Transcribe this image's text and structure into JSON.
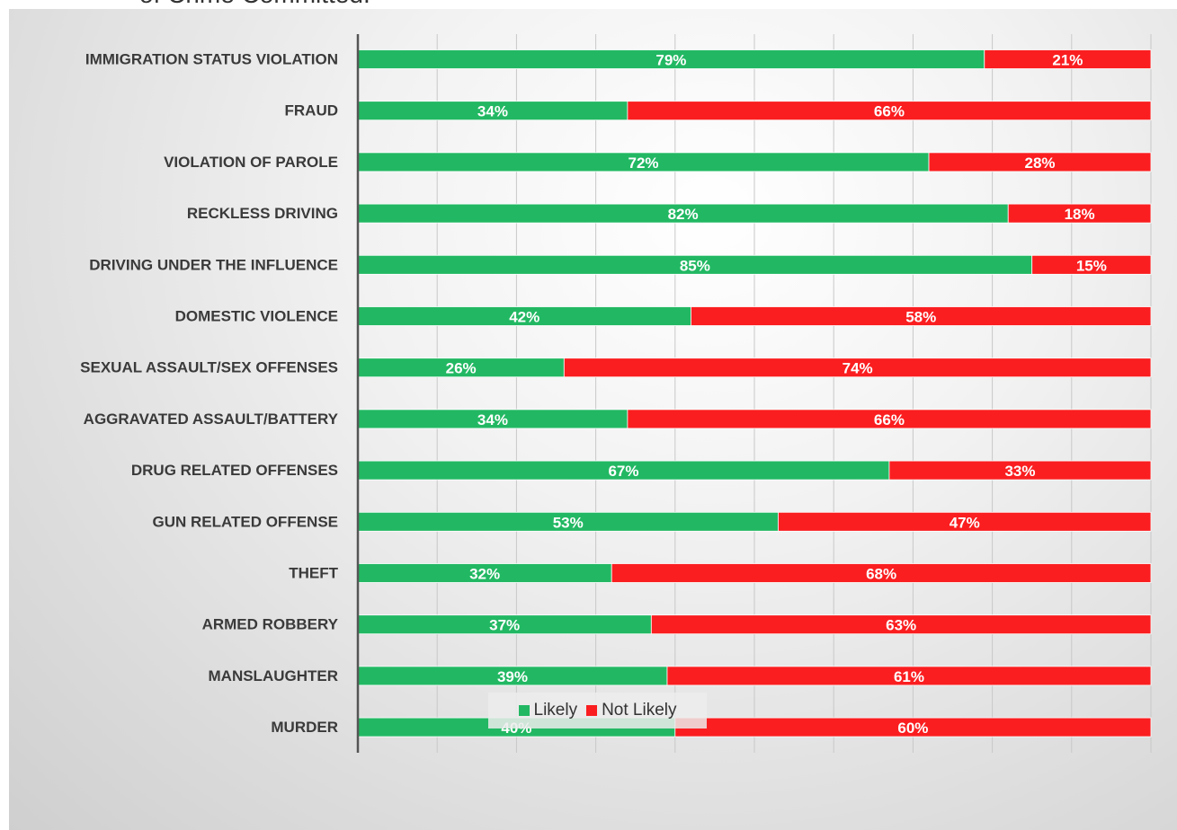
{
  "title_fragment": "of Crime Committed.",
  "chart_data": {
    "type": "bar",
    "orientation": "horizontal",
    "stacked": "percent",
    "categories": [
      "IMMIGRATION STATUS VIOLATION",
      "FRAUD",
      "VIOLATION OF PAROLE",
      "RECKLESS DRIVING",
      "DRIVING UNDER THE INFLUENCE",
      "DOMESTIC VIOLENCE",
      "SEXUAL ASSAULT/SEX OFFENSES",
      "AGGRAVATED ASSAULT/BATTERY",
      "DRUG RELATED OFFENSES",
      "GUN RELATED OFFENSE",
      "THEFT",
      "ARMED ROBBERY",
      "MANSLAUGHTER",
      "MURDER"
    ],
    "series": [
      {
        "name": "Likely",
        "color": "#22b863",
        "values": [
          79,
          34,
          72,
          82,
          85,
          42,
          26,
          34,
          67,
          53,
          32,
          37,
          39,
          40
        ],
        "labels": [
          "79%",
          "34%",
          "72%",
          "82%",
          "85%",
          "42%",
          "26%",
          "34%",
          "67%",
          "53%",
          "32%",
          "37%",
          "39%",
          "40%"
        ]
      },
      {
        "name": "Not Likely",
        "color": "#fa1e20",
        "values": [
          21,
          66,
          28,
          18,
          15,
          58,
          74,
          66,
          33,
          47,
          68,
          63,
          61,
          60
        ],
        "labels": [
          "21%",
          "66%",
          "28%",
          "18%",
          "15%",
          "58%",
          "74%",
          "66%",
          "33%",
          "47%",
          "68%",
          "63%",
          "61%",
          "60%"
        ]
      }
    ],
    "xlim": [
      0,
      100
    ],
    "grid": true,
    "legend_position": "bottom"
  }
}
